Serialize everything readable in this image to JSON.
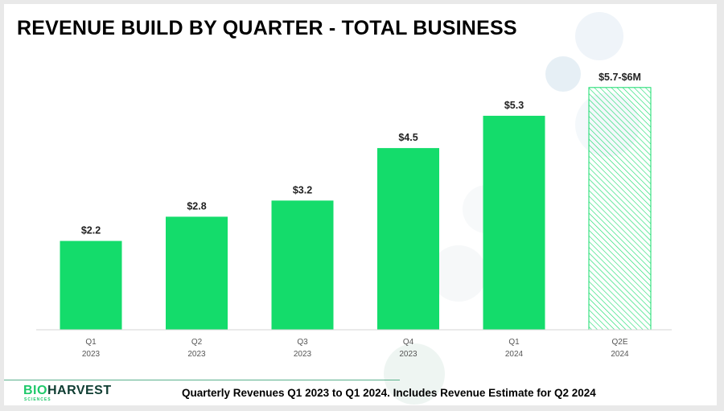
{
  "slide": {
    "title": "REVENUE BUILD BY QUARTER - TOTAL BUSINESS",
    "footnote": "Quarterly Revenues Q1 2023 to Q1 2024. Includes Revenue Estimate for Q2 2024"
  },
  "logo": {
    "part1": "BIO",
    "part2": "HARVEST",
    "sub": "SCIENCES"
  },
  "colors": {
    "bar": "#14dc6b",
    "estimate_hatch": "#14dc6b",
    "axis": "#d4d4d4",
    "accent_dark": "#0f3d32"
  },
  "chart_data": {
    "type": "bar",
    "title": "",
    "xlabel": "",
    "ylabel": "",
    "ylim": [
      0,
      6.3
    ],
    "grid": false,
    "categories": [
      [
        "Q1",
        "2023"
      ],
      [
        "Q2",
        "2023"
      ],
      [
        "Q3",
        "2023"
      ],
      [
        "Q4",
        "2023"
      ],
      [
        "Q1",
        "2024"
      ],
      [
        "Q2E",
        "2024"
      ]
    ],
    "values": [
      2.2,
      2.8,
      3.2,
      4.5,
      5.3,
      6.0
    ],
    "data_labels": [
      "$2.2",
      "$2.8",
      "$3.2",
      "$4.5",
      "$5.3",
      "$5.7-$6M"
    ],
    "estimate": [
      false,
      false,
      false,
      false,
      false,
      true
    ]
  }
}
